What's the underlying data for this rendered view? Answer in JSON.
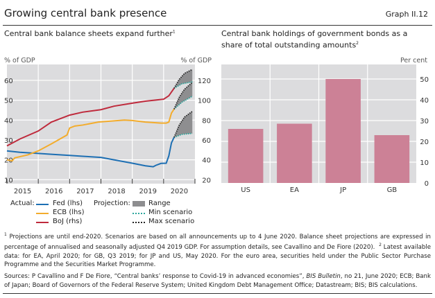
{
  "header": {
    "title": "Growing central bank presence",
    "graph_number": "Graph II.12"
  },
  "chart_data": [
    {
      "type": "line",
      "title": "Central bank balance sheets expand further",
      "title_note": "1",
      "ylabel_left": "% of GDP",
      "ylabel_right": "% of GDP",
      "ylim_left": [
        8,
        68
      ],
      "ylim_right": [
        16,
        136
      ],
      "yticks_left": [
        "10",
        "20",
        "30",
        "40",
        "50",
        "60"
      ],
      "yticks_right": [
        "20",
        "40",
        "60",
        "80",
        "100",
        "120"
      ],
      "xticks": [
        "2015",
        "2016",
        "2017",
        "2018",
        "2019",
        "2020"
      ],
      "xlim": [
        "2015-01",
        "2020-12"
      ],
      "grid": true,
      "series": [
        {
          "name": "Fed (lhs)",
          "axis": "left",
          "color": "#1d6fb3",
          "points": [
            [
              "2015-01",
              24.5
            ],
            [
              "2015-06",
              23.8
            ],
            [
              "2016-01",
              23.2
            ],
            [
              "2016-06",
              22.8
            ],
            [
              "2017-01",
              22.2
            ],
            [
              "2017-06",
              21.8
            ],
            [
              "2018-01",
              21.2
            ],
            [
              "2018-06",
              20.0
            ],
            [
              "2019-01",
              18.3
            ],
            [
              "2019-06",
              17.0
            ],
            [
              "2019-09",
              16.5
            ],
            [
              "2019-10",
              17.2
            ],
            [
              "2019-12",
              18.2
            ],
            [
              "2020-02",
              18.3
            ],
            [
              "2020-03",
              22
            ],
            [
              "2020-04",
              28.5
            ],
            [
              "2020-05",
              31.3
            ]
          ]
        },
        {
          "name": "ECB (lhs)",
          "axis": "left",
          "color": "#f3ac2c",
          "points": [
            [
              "2015-01",
              20
            ],
            [
              "2015-03",
              19.5
            ],
            [
              "2015-04",
              21
            ],
            [
              "2015-09",
              22.5
            ],
            [
              "2016-01",
              24.5
            ],
            [
              "2016-06",
              28
            ],
            [
              "2016-12",
              32.5
            ],
            [
              "2017-01",
              36
            ],
            [
              "2017-03",
              37
            ],
            [
              "2017-06",
              37.5
            ],
            [
              "2017-12",
              39
            ],
            [
              "2018-06",
              39.6
            ],
            [
              "2018-10",
              40
            ],
            [
              "2019-01",
              39.8
            ],
            [
              "2019-06",
              39
            ],
            [
              "2019-12",
              38.5
            ],
            [
              "2020-02",
              38.5
            ],
            [
              "2020-03",
              39
            ],
            [
              "2020-04",
              43.5
            ],
            [
              "2020-05",
              45.5
            ]
          ]
        },
        {
          "name": "BoJ (rhs)",
          "axis": "right",
          "color": "#bf2a3c",
          "points": [
            [
              "2015-01",
              54
            ],
            [
              "2015-06",
              61
            ],
            [
              "2016-01",
              69
            ],
            [
              "2016-06",
              78
            ],
            [
              "2017-01",
              85
            ],
            [
              "2017-06",
              88
            ],
            [
              "2018-01",
              90.5
            ],
            [
              "2018-06",
              94
            ],
            [
              "2019-01",
              97
            ],
            [
              "2019-06",
              99
            ],
            [
              "2020-01",
              101
            ],
            [
              "2020-03",
              104.5
            ],
            [
              "2020-05",
              112
            ]
          ]
        }
      ],
      "projections": [
        {
          "of": "Fed (lhs)",
          "axis": "left",
          "min": [
            [
              "2020-05",
              31.3
            ],
            [
              "2020-08",
              32.8
            ],
            [
              "2020-12",
              33.3
            ]
          ],
          "max": [
            [
              "2020-05",
              31.3
            ],
            [
              "2020-07",
              37.5
            ],
            [
              "2020-09",
              41.5
            ],
            [
              "2020-12",
              44.4
            ]
          ]
        },
        {
          "of": "ECB (lhs)",
          "axis": "left",
          "min": [
            [
              "2020-05",
              45.5
            ],
            [
              "2020-08",
              49
            ],
            [
              "2020-12",
              52
            ]
          ],
          "max": [
            [
              "2020-05",
              45.5
            ],
            [
              "2020-07",
              51.5
            ],
            [
              "2020-09",
              55.5
            ],
            [
              "2020-12",
              59
            ]
          ]
        },
        {
          "of": "BoJ (rhs)",
          "axis": "right",
          "min": [
            [
              "2020-05",
              112
            ],
            [
              "2020-08",
              116.5
            ],
            [
              "2020-12",
              118.5
            ]
          ],
          "max": [
            [
              "2020-05",
              112
            ],
            [
              "2020-07",
              121
            ],
            [
              "2020-09",
              127
            ],
            [
              "2020-12",
              131
            ]
          ]
        }
      ],
      "legend": {
        "actual_label": "Actual:",
        "projection_label": "Projection:",
        "range_label": "Range",
        "min_label": "Min scenario",
        "max_label": "Max scenario",
        "range_color": "#8e8e90",
        "min_color": "#2aa59c",
        "max_color": "#222222",
        "placement": "bottom"
      }
    },
    {
      "type": "bar",
      "title": "Central bank holdings of government bonds as a share of total outstanding amounts",
      "title_note": "2",
      "ylabel": "Per cent",
      "ylim": [
        0,
        57
      ],
      "yticks": [
        "0",
        "10",
        "20",
        "30",
        "40",
        "50"
      ],
      "categories": [
        "US",
        "EA",
        "JP",
        "GB"
      ],
      "values": [
        26,
        28.5,
        50,
        23
      ],
      "color": "#cc8196",
      "grid": true
    }
  ],
  "footnotes": {
    "note1": "Projections are until end-2020. Scenarios are based on all announcements up to 4 June 2020. Balance sheet projections are expressed in percentage of annualised and seasonally adjusted Q4 2019 GDP. For assumption details, see Cavallino and De Fiore (2020).",
    "note2": "Latest available data: for EA, April 2020; for GB, Q3 2019; for JP and US, May 2020. For the euro area, securities held under the Public Sector Purchase Programme and the Securities Market Programme.",
    "sources_a": "Sources: P Cavallino and F De Fiore, “Central banks’ response to Covid-19 in advanced economies”, ",
    "sources_italic": "BIS Bulletin",
    "sources_b": ", no 21, June 2020; ECB; Bank of Japan; Board of Governors of the Federal Reserve System; United Kingdom Debt Management Office; Datastream; BIS; BIS calculations."
  }
}
